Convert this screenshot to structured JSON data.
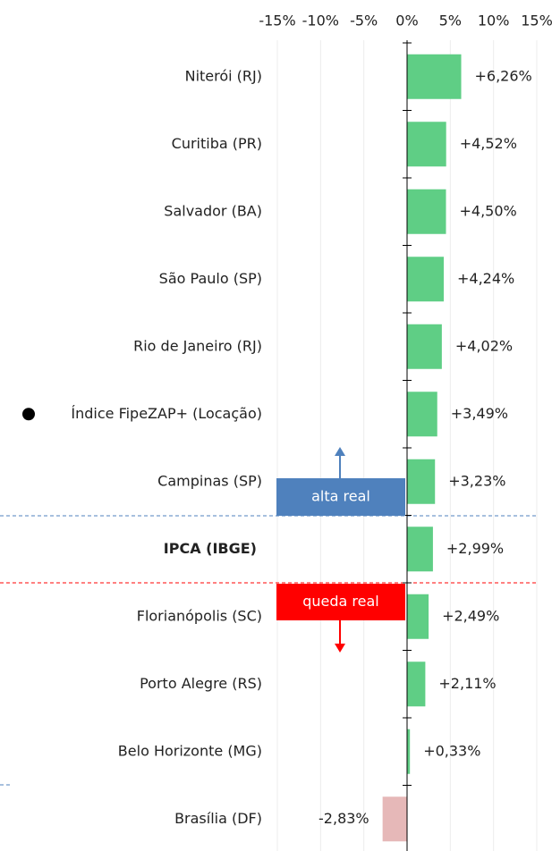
{
  "chart_data": {
    "type": "bar",
    "orientation": "horizontal",
    "categories": [
      "Niterói (RJ)",
      "Curitiba (PR)",
      "Salvador (BA)",
      "São Paulo (SP)",
      "Rio de Janeiro (RJ)",
      "Índice FipeZAP+ (Locação)",
      "Campinas (SP)",
      "IPCA (IBGE)",
      "Florianópolis (SC)",
      "Porto Alegre (RS)",
      "Belo Horizonte (MG)",
      "Brasília (DF)"
    ],
    "values": [
      6.26,
      4.52,
      4.5,
      4.24,
      4.02,
      3.49,
      3.23,
      2.99,
      2.49,
      2.11,
      0.33,
      -2.83
    ],
    "value_labels": [
      "+6,26%",
      "+4,52%",
      "+4,50%",
      "+4,24%",
      "+4,02%",
      "+3,49%",
      "+3,23%",
      "+2,99%",
      "+2,49%",
      "+2,11%",
      "+0,33%",
      "-2,83%"
    ],
    "colors": [
      "#5fce85",
      "#5fce85",
      "#5fce85",
      "#5fce85",
      "#5fce85",
      "#5fce85",
      "#5fce85",
      "#5fce85",
      "#5fce85",
      "#5fce85",
      "#5fce85",
      "#e6b8b8"
    ],
    "xlim": [
      -15,
      15
    ],
    "xticks": [
      {
        "value": -15,
        "label": "-15%"
      },
      {
        "value": -10,
        "label": "-10%"
      },
      {
        "value": -5,
        "label": "-5%"
      },
      {
        "value": 0,
        "label": "0%"
      },
      {
        "value": 5,
        "label": "5%"
      },
      {
        "value": 10,
        "label": "10%"
      },
      {
        "value": 15,
        "label": "15%"
      }
    ],
    "grid": true,
    "annotations": [
      {
        "text": "alta real",
        "color": "#4f81bd"
      },
      {
        "text": "queda real",
        "color": "#ff0000"
      }
    ]
  }
}
